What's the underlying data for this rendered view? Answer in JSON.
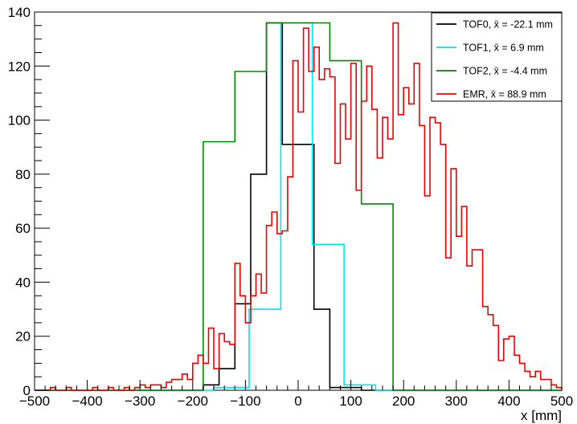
{
  "chart_data": {
    "type": "line",
    "xlabel": "x [mm]",
    "ylabel": "",
    "xlim": [
      -500,
      500
    ],
    "ylim": [
      0,
      140
    ],
    "x_ticks": [
      -500,
      -400,
      -300,
      -200,
      -100,
      0,
      100,
      200,
      300,
      400,
      500
    ],
    "x_tick_labels": [
      "−500",
      "−400",
      "−300",
      "−200",
      "−100",
      "0",
      "100",
      "200",
      "300",
      "400",
      "500"
    ],
    "y_ticks": [
      0,
      20,
      40,
      60,
      80,
      100,
      120,
      140
    ],
    "y_tick_labels": [
      "0",
      "20",
      "40",
      "60",
      "80",
      "100",
      "120",
      "140"
    ],
    "grid": false,
    "legend": "top-right",
    "series": [
      {
        "name": "TOF0",
        "legend_label": "TOF0, x̄ = -22.1 mm",
        "color": "#000000",
        "edges": [
          -500,
          -180,
          -150,
          -120,
          -90,
          -60,
          -30,
          0,
          30,
          60,
          90,
          120,
          150,
          500
        ],
        "values": [
          0,
          2,
          8,
          32,
          80,
          136,
          91,
          91,
          30,
          1,
          1,
          0,
          0
        ]
      },
      {
        "name": "TOF1",
        "legend_label": "TOF1, x̄ = 6.9 mm",
        "color": "#00e5ee",
        "edges": [
          -500,
          -160,
          -100,
          -93,
          -33,
          27,
          87,
          147,
          500
        ],
        "values": [
          0,
          1,
          1,
          30,
          136,
          54,
          2,
          0
        ]
      },
      {
        "name": "TOF2",
        "legend_label": "TOF2, x̄ = -4.4 mm",
        "color": "#008800",
        "edges": [
          -500,
          -180,
          -120,
          -60,
          0,
          60,
          120,
          180,
          500
        ],
        "values": [
          0,
          92,
          118,
          136,
          136,
          122,
          69,
          0
        ]
      },
      {
        "name": "EMR",
        "legend_label": "EMR, x̄ = 88.9 mm",
        "color": "#ee0000",
        "bin_start": -500,
        "bin_width": 10,
        "values": [
          0,
          0,
          0,
          1,
          0,
          0,
          1,
          0,
          0,
          0,
          0,
          1,
          0,
          0,
          1,
          0,
          0,
          1,
          0,
          1,
          2,
          1,
          2,
          2,
          1,
          3,
          4,
          4,
          6,
          4,
          10,
          13,
          10,
          23,
          8,
          21,
          18,
          17,
          47,
          35,
          25,
          35,
          43,
          36,
          61,
          66,
          58,
          59,
          79,
          122,
          103,
          134,
          118,
          127,
          115,
          119,
          116,
          84,
          106,
          93,
          121,
          74,
          107,
          120,
          104,
          86,
          101,
          93,
          136,
          102,
          112,
          106,
          121,
          98,
          72,
          101,
          99,
          91,
          49,
          82,
          57,
          68,
          46,
          52,
          52,
          31,
          28,
          24,
          11,
          19,
          20,
          13,
          10,
          7,
          5,
          7,
          4,
          4,
          2,
          1
        ]
      }
    ]
  }
}
